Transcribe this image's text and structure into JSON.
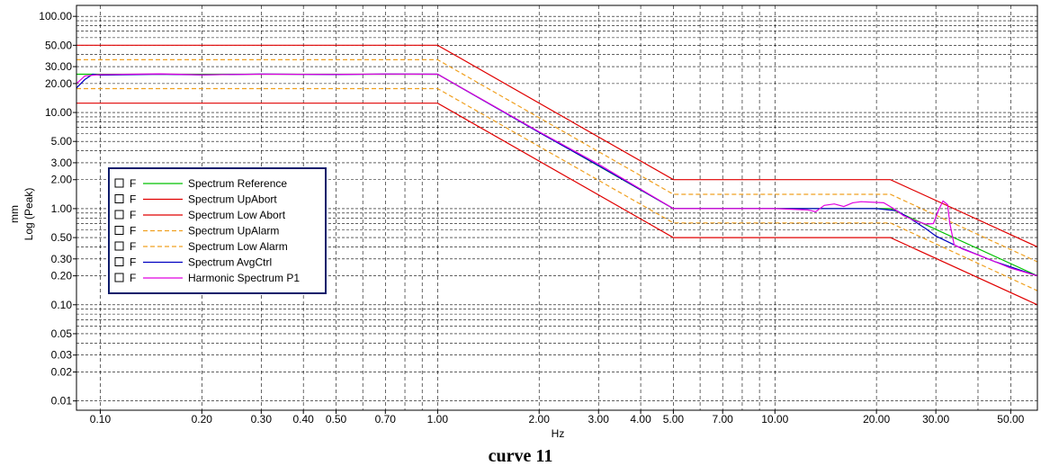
{
  "caption": "curve 11",
  "chart_data": {
    "type": "line",
    "xlabel": "Hz",
    "ylabel_lines": [
      "mm",
      "Log (Peak)"
    ],
    "xscale": "log",
    "yscale": "log",
    "xlim": [
      0.085,
      60
    ],
    "ylim": [
      0.008,
      130
    ],
    "grid": true,
    "legend_position": "center-left",
    "x_ticks": [
      {
        "v": 0.1,
        "label": "0.10"
      },
      {
        "v": 0.2,
        "label": "0.20"
      },
      {
        "v": 0.3,
        "label": "0.30"
      },
      {
        "v": 0.4,
        "label": "0.40"
      },
      {
        "v": 0.5,
        "label": "0.50"
      },
      {
        "v": 0.7,
        "label": "0.70"
      },
      {
        "v": 1,
        "label": "1.00"
      },
      {
        "v": 2,
        "label": "2.00"
      },
      {
        "v": 3,
        "label": "3.00"
      },
      {
        "v": 4,
        "label": "4.00"
      },
      {
        "v": 5,
        "label": "5.00"
      },
      {
        "v": 7,
        "label": "7.00"
      },
      {
        "v": 10,
        "label": "10.00"
      },
      {
        "v": 20,
        "label": "20.00"
      },
      {
        "v": 30,
        "label": "30.00"
      },
      {
        "v": 50,
        "label": "50.00"
      }
    ],
    "y_ticks": [
      {
        "v": 0.01,
        "label": "0.01"
      },
      {
        "v": 0.02,
        "label": "0.02"
      },
      {
        "v": 0.03,
        "label": "0.03"
      },
      {
        "v": 0.05,
        "label": "0.05"
      },
      {
        "v": 0.1,
        "label": "0.10"
      },
      {
        "v": 0.2,
        "label": "0.20"
      },
      {
        "v": 0.3,
        "label": "0.30"
      },
      {
        "v": 0.5,
        "label": "0.50"
      },
      {
        "v": 1,
        "label": "1.00"
      },
      {
        "v": 2,
        "label": "2.00"
      },
      {
        "v": 3,
        "label": "3.00"
      },
      {
        "v": 5,
        "label": "5.00"
      },
      {
        "v": 10,
        "label": "10.00"
      },
      {
        "v": 20,
        "label": "20.00"
      },
      {
        "v": 30,
        "label": "30.00"
      },
      {
        "v": 50,
        "label": "50.00"
      },
      {
        "v": 100,
        "label": "100.00"
      }
    ],
    "series": [
      {
        "name": "Spectrum Reference",
        "color": "#00c000",
        "dash": "",
        "x": [
          0.085,
          1,
          5,
          22,
          60
        ],
        "y": [
          25,
          25,
          1,
          1,
          0.2
        ]
      },
      {
        "name": "Spectrum UpAbort",
        "color": "#e00000",
        "dash": "",
        "x": [
          0.085,
          1,
          5,
          22,
          60
        ],
        "y": [
          50,
          50,
          2,
          2,
          0.4
        ]
      },
      {
        "name": "Spectrum Low Abort",
        "color": "#e00000",
        "dash": "",
        "x": [
          0.085,
          1,
          5,
          22,
          60
        ],
        "y": [
          12.5,
          12.5,
          0.5,
          0.5,
          0.1
        ]
      },
      {
        "name": "Spectrum UpAlarm",
        "color": "#f0a020",
        "dash": "5,3",
        "x": [
          0.085,
          1,
          5,
          22,
          60
        ],
        "y": [
          35.4,
          35.4,
          1.41,
          1.41,
          0.28
        ]
      },
      {
        "name": "Spectrum Low Alarm",
        "color": "#f0a020",
        "dash": "5,3",
        "x": [
          0.085,
          1,
          5,
          22,
          60
        ],
        "y": [
          17.7,
          17.7,
          0.71,
          0.71,
          0.14
        ]
      },
      {
        "name": "Spectrum AvgCtrl",
        "color": "#0000c0",
        "dash": "",
        "x": [
          0.085,
          0.09,
          0.095,
          0.1,
          0.15,
          0.2,
          0.3,
          0.5,
          0.7,
          1,
          2,
          3,
          5,
          8,
          10,
          13,
          16,
          20,
          23,
          25,
          28,
          30,
          35,
          45,
          60
        ],
        "y": [
          18,
          22,
          25,
          24.5,
          25,
          24.6,
          25.1,
          24.8,
          25.1,
          25,
          6.2,
          2.8,
          1,
          1,
          1,
          1,
          1,
          1,
          0.95,
          0.8,
          0.62,
          0.52,
          0.4,
          0.28,
          0.2
        ]
      },
      {
        "name": "Harmonic Spectrum P1",
        "color": "#e000e0",
        "dash": "",
        "x": [
          0.085,
          0.09,
          0.1,
          0.15,
          0.2,
          0.3,
          0.5,
          0.7,
          1,
          2,
          3,
          5,
          8,
          10,
          12.5,
          13.2,
          14,
          15,
          16,
          17,
          18,
          21,
          22.5,
          24,
          26,
          28,
          29.5,
          30.5,
          31.5,
          32.5,
          33,
          34,
          36,
          40,
          45,
          50,
          60
        ],
        "y": [
          20,
          24,
          24.8,
          25.2,
          24.7,
          25,
          24.9,
          25.1,
          25,
          6.3,
          2.9,
          1,
          1,
          1,
          0.97,
          0.93,
          1.08,
          1.12,
          1.05,
          1.15,
          1.18,
          1.15,
          1,
          0.85,
          0.75,
          0.69,
          0.7,
          0.95,
          1.2,
          1.1,
          0.7,
          0.42,
          0.38,
          0.33,
          0.28,
          0.24,
          0.2
        ]
      }
    ]
  }
}
